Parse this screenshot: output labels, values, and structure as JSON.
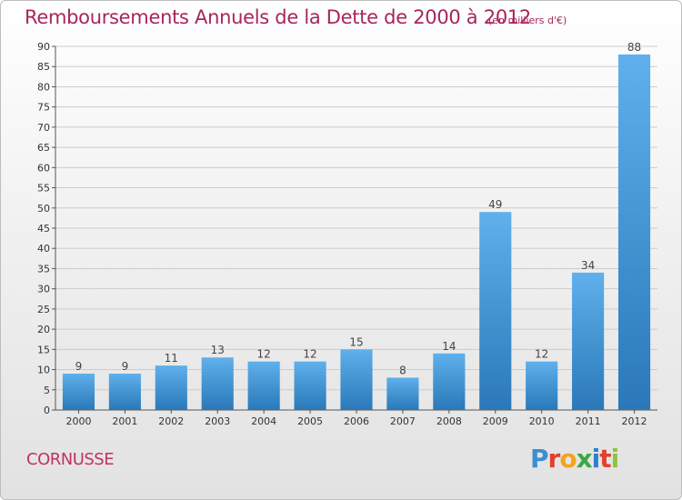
{
  "header": {
    "title": "Remboursements Annuels de la Dette de 2000 à 2012",
    "subtitle": "(en milliers d'€)"
  },
  "footer": {
    "commune": "CORNUSSE",
    "logo_letters": [
      "P",
      "r",
      "o",
      "x",
      "i",
      "t",
      "i"
    ]
  },
  "colors": {
    "title": "#a8255c",
    "bar_top": "#5fb0ec",
    "bar_bottom": "#2a78b8",
    "grid": "#cccccc"
  },
  "chart_data": {
    "type": "bar",
    "title": "Remboursements Annuels de la Dette de 2000 à 2012",
    "xlabel": "",
    "ylabel": "",
    "categories": [
      "2000",
      "2001",
      "2002",
      "2003",
      "2004",
      "2005",
      "2006",
      "2007",
      "2008",
      "2009",
      "2010",
      "2011",
      "2012"
    ],
    "values": [
      9,
      9,
      11,
      13,
      12,
      12,
      15,
      8,
      14,
      49,
      12,
      34,
      88
    ],
    "ylim": [
      0,
      90
    ],
    "yticks": [
      0,
      5,
      10,
      15,
      20,
      25,
      30,
      35,
      40,
      45,
      50,
      55,
      60,
      65,
      70,
      75,
      80,
      85,
      90
    ],
    "grid": true
  }
}
